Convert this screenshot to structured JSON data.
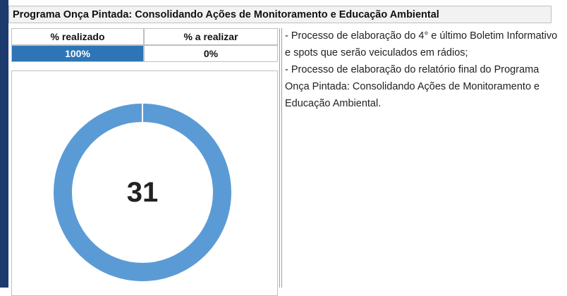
{
  "header": {
    "title": "Programa Onça Pintada: Consolidando Ações de Monitoramento e Educação Ambiental"
  },
  "table": {
    "headers": [
      "% realizado",
      "% a realizar"
    ],
    "row": [
      "100%",
      "0%"
    ]
  },
  "donut": {
    "label": "31"
  },
  "notes": [
    "- Processo de elaboração do 4° e último Boletim Informativo e spots que serão veiculados em rádios;",
    "- Processo de elaboração do relatório final do Programa Onça Pintada: Consolidando Ações de Monitoramento e Educação Ambiental."
  ]
}
